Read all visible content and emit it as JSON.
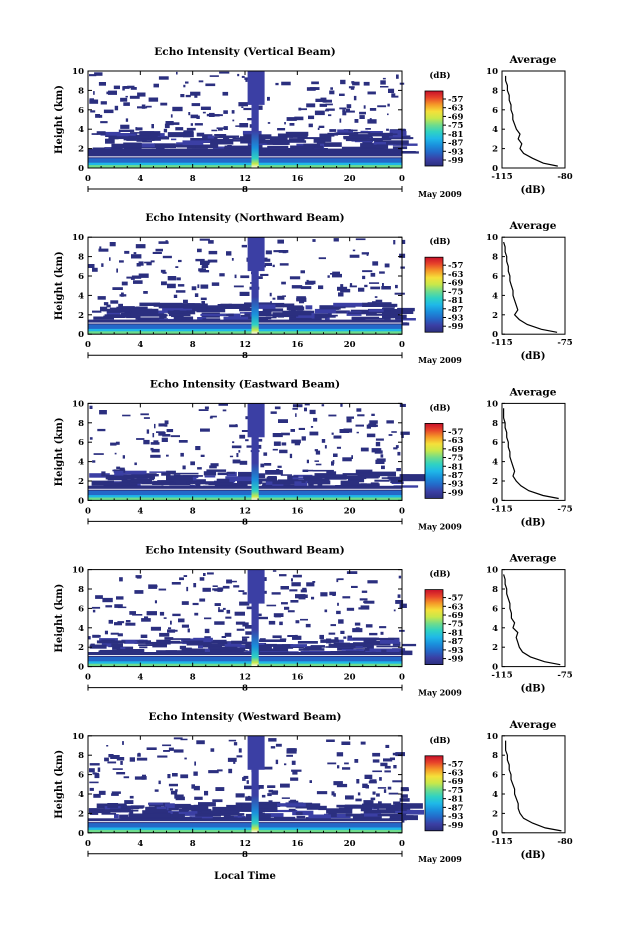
{
  "figure": {
    "xlabel": "Local Time",
    "date_label": "May 2009",
    "day_marker": "8",
    "colorbar_unit": "(dB)",
    "average_title": "Average",
    "average_xlabel": "(dB)",
    "ylabel": "Height (km)",
    "colors": {
      "colorbar": [
        "#2b2f7f",
        "#3b3fa4",
        "#2468c8",
        "#1a8fdc",
        "#1fb8e8",
        "#2fd2c3",
        "#6fdc8c",
        "#c8e84a",
        "#f5e03a",
        "#f59a28",
        "#e8452a",
        "#c8102a"
      ],
      "background": "#ffffff",
      "low_echo": "#2e3180"
    }
  },
  "chart_data": [
    {
      "type": "heatmap",
      "title": "Echo Intensity (Vertical Beam)",
      "ylabel": "Height (km)",
      "xlabel": "",
      "x_ticks": [
        "0",
        "4",
        "8",
        "12",
        "16",
        "20",
        "0"
      ],
      "y_ticks": [
        "0",
        "2",
        "4",
        "6",
        "8",
        "10"
      ],
      "xlim": [
        0,
        24
      ],
      "ylim": [
        0,
        10
      ],
      "colorbar_label": "(dB)",
      "colorbar_ticks": [
        "-57",
        "-63",
        "-69",
        "-75",
        "-81",
        "-87",
        "-93",
        "-99"
      ],
      "layers": {
        "dense_top_km": 1.7,
        "patchy_top_km": 4.0,
        "sparse_top_km": 10.0,
        "plume_time_h": 12.6,
        "plume_top_km": 10.0
      },
      "average": {
        "title": "Average",
        "xlabel": "(dB)",
        "x_ticks": [
          "-115",
          "-80"
        ],
        "xlim": [
          -115,
          -80
        ],
        "ylim": [
          0,
          10
        ],
        "height_km": [
          0.2,
          0.5,
          1,
          1.5,
          2,
          2.5,
          3,
          3.5,
          4,
          4.5,
          5,
          5.5,
          6,
          6.5,
          7,
          7.5,
          8,
          8.5,
          9,
          9.5
        ],
        "db": [
          -84,
          -92,
          -98,
          -103,
          -105,
          -104,
          -106,
          -105,
          -107,
          -108,
          -109,
          -109,
          -110,
          -110,
          -111,
          -111,
          -112,
          -112,
          -113,
          -113
        ]
      }
    },
    {
      "type": "heatmap",
      "title": "Echo Intensity (Northward Beam)",
      "ylabel": "Height (km)",
      "xlabel": "",
      "x_ticks": [
        "0",
        "4",
        "8",
        "12",
        "16",
        "20",
        "0"
      ],
      "y_ticks": [
        "0",
        "2",
        "4",
        "6",
        "8",
        "10"
      ],
      "xlim": [
        0,
        24
      ],
      "ylim": [
        0,
        10
      ],
      "colorbar_label": "(dB)",
      "colorbar_ticks": [
        "-57",
        "-63",
        "-69",
        "-75",
        "-81",
        "-87",
        "-93",
        "-99"
      ],
      "layers": {
        "dense_top_km": 1.2,
        "patchy_top_km": 3.3,
        "sparse_top_km": 10.0,
        "plume_time_h": 12.6,
        "plume_top_km": 10.0
      },
      "average": {
        "title": "Average",
        "xlabel": "(dB)",
        "x_ticks": [
          "-115",
          "-75"
        ],
        "xlim": [
          -115,
          -75
        ],
        "ylim": [
          0,
          10
        ],
        "height_km": [
          0.2,
          0.5,
          1,
          1.5,
          2,
          2.5,
          3,
          3.5,
          4,
          4.5,
          5,
          5.5,
          6,
          6.5,
          7,
          7.5,
          8,
          8.5,
          9,
          9.5
        ],
        "db": [
          -80,
          -90,
          -99,
          -104,
          -107,
          -105,
          -106,
          -107,
          -108,
          -108,
          -109,
          -110,
          -110,
          -111,
          -111,
          -112,
          -112,
          -113,
          -113,
          -114
        ]
      }
    },
    {
      "type": "heatmap",
      "title": "Echo Intensity (Eastward Beam)",
      "ylabel": "Height (km)",
      "xlabel": "",
      "x_ticks": [
        "0",
        "4",
        "8",
        "12",
        "16",
        "20",
        "0"
      ],
      "y_ticks": [
        "0",
        "2",
        "4",
        "6",
        "8",
        "10"
      ],
      "xlim": [
        0,
        24
      ],
      "ylim": [
        0,
        10
      ],
      "colorbar_label": "(dB)",
      "colorbar_ticks": [
        "-57",
        "-63",
        "-69",
        "-75",
        "-81",
        "-87",
        "-93",
        "-99"
      ],
      "layers": {
        "dense_top_km": 1.2,
        "patchy_top_km": 3.2,
        "sparse_top_km": 10.0,
        "plume_time_h": 12.6,
        "plume_top_km": 10.0
      },
      "average": {
        "title": "Average",
        "xlabel": "(dB)",
        "x_ticks": [
          "-115",
          "-75"
        ],
        "xlim": [
          -115,
          -75
        ],
        "ylim": [
          0,
          10
        ],
        "height_km": [
          0.2,
          0.5,
          1,
          1.5,
          2,
          2.5,
          3,
          3.5,
          4,
          4.5,
          5,
          5.5,
          6,
          6.5,
          7,
          7.5,
          8,
          8.5,
          9,
          9.5
        ],
        "db": [
          -79,
          -89,
          -98,
          -103,
          -106,
          -108,
          -107,
          -108,
          -109,
          -110,
          -110,
          -111,
          -111,
          -112,
          -112,
          -113,
          -113,
          -114,
          -114,
          -114
        ]
      }
    },
    {
      "type": "heatmap",
      "title": "Echo Intensity (Southward Beam)",
      "ylabel": "Height (km)",
      "xlabel": "",
      "x_ticks": [
        "0",
        "4",
        "8",
        "12",
        "16",
        "20",
        "0"
      ],
      "y_ticks": [
        "0",
        "2",
        "4",
        "6",
        "8",
        "10"
      ],
      "xlim": [
        0,
        24
      ],
      "ylim": [
        0,
        10
      ],
      "colorbar_label": "(dB)",
      "colorbar_ticks": [
        "-57",
        "-63",
        "-69",
        "-75",
        "-81",
        "-87",
        "-93",
        "-99"
      ],
      "layers": {
        "dense_top_km": 1.2,
        "patchy_top_km": 3.0,
        "sparse_top_km": 10.0,
        "plume_time_h": 12.6,
        "plume_top_km": 10.0
      },
      "average": {
        "title": "Average",
        "xlabel": "(dB)",
        "x_ticks": [
          "-115",
          "-75"
        ],
        "xlim": [
          -115,
          -75
        ],
        "ylim": [
          0,
          10
        ],
        "height_km": [
          0.2,
          0.5,
          1,
          1.5,
          2,
          2.5,
          3,
          3.5,
          4,
          4.5,
          5,
          5.5,
          6,
          6.5,
          7,
          7.5,
          8,
          8.5,
          9,
          9.5
        ],
        "db": [
          -78,
          -88,
          -97,
          -102,
          -104,
          -105,
          -106,
          -105,
          -108,
          -107,
          -109,
          -109,
          -110,
          -110,
          -111,
          -112,
          -112,
          -113,
          -113,
          -114
        ]
      }
    },
    {
      "type": "heatmap",
      "title": "Echo Intensity (Westward Beam)",
      "ylabel": "Height (km)",
      "xlabel": "Local Time",
      "x_ticks": [
        "0",
        "4",
        "8",
        "12",
        "16",
        "20",
        "0"
      ],
      "y_ticks": [
        "0",
        "2",
        "4",
        "6",
        "8",
        "10"
      ],
      "xlim": [
        0,
        24
      ],
      "ylim": [
        0,
        10
      ],
      "colorbar_label": "(dB)",
      "colorbar_ticks": [
        "-57",
        "-63",
        "-69",
        "-75",
        "-81",
        "-87",
        "-93",
        "-99"
      ],
      "layers": {
        "dense_top_km": 1.2,
        "patchy_top_km": 3.2,
        "sparse_top_km": 10.0,
        "plume_time_h": 12.6,
        "plume_top_km": 10.0
      },
      "average": {
        "title": "Average",
        "xlabel": "(dB)",
        "x_ticks": [
          "-115",
          "-80"
        ],
        "xlim": [
          -115,
          -80
        ],
        "ylim": [
          0,
          10
        ],
        "height_km": [
          0.2,
          0.5,
          1,
          1.5,
          2,
          2.5,
          3,
          3.5,
          4,
          4.5,
          5,
          5.5,
          6,
          6.5,
          7,
          7.5,
          8,
          8.5,
          9,
          9.5
        ],
        "db": [
          -82,
          -91,
          -98,
          -103,
          -105,
          -106,
          -106,
          -107,
          -108,
          -108,
          -109,
          -110,
          -110,
          -111,
          -111,
          -112,
          -112,
          -113,
          -113,
          -113
        ]
      }
    }
  ]
}
